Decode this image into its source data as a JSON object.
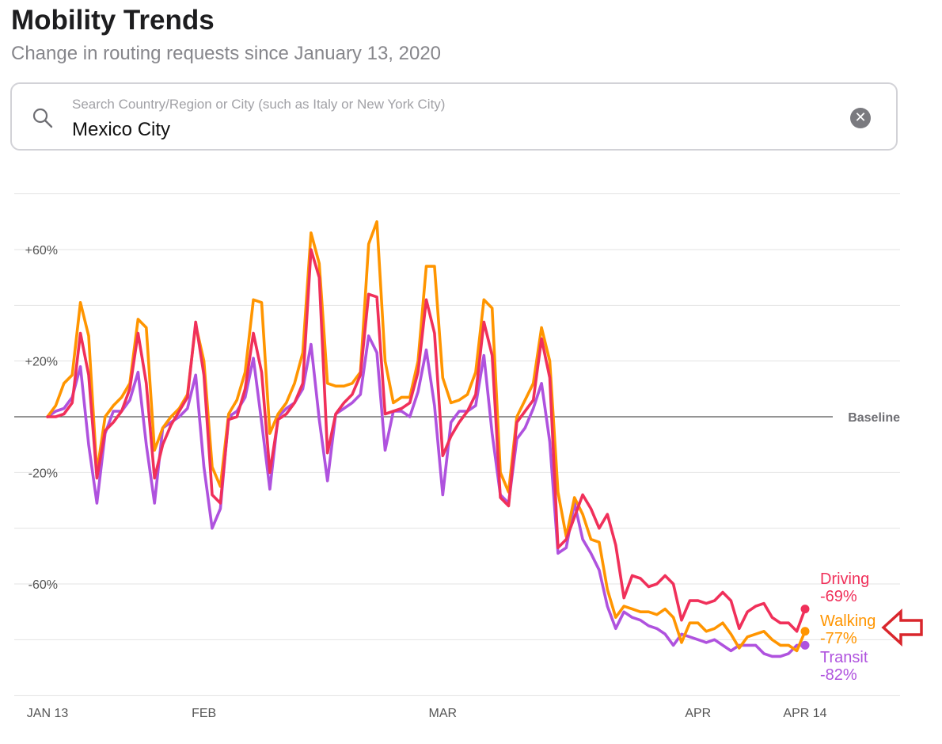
{
  "header": {
    "title": "Mobility Trends",
    "subtitle": "Change in routing requests since January 13, 2020"
  },
  "search": {
    "placeholder": "Search Country/Region or City (such as Italy or New York City)",
    "value": "Mexico City",
    "clear_icon": "close-circle-icon",
    "search_icon": "magnifier-icon"
  },
  "chart_data": {
    "type": "line",
    "x": [
      "2020-01-13",
      "2020-01-14",
      "2020-01-15",
      "2020-01-16",
      "2020-01-17",
      "2020-01-18",
      "2020-01-19",
      "2020-01-20",
      "2020-01-21",
      "2020-01-22",
      "2020-01-23",
      "2020-01-24",
      "2020-01-25",
      "2020-01-26",
      "2020-01-27",
      "2020-01-28",
      "2020-01-29",
      "2020-01-30",
      "2020-01-31",
      "2020-02-01",
      "2020-02-02",
      "2020-02-03",
      "2020-02-04",
      "2020-02-05",
      "2020-02-06",
      "2020-02-07",
      "2020-02-08",
      "2020-02-09",
      "2020-02-10",
      "2020-02-11",
      "2020-02-12",
      "2020-02-13",
      "2020-02-14",
      "2020-02-15",
      "2020-02-16",
      "2020-02-17",
      "2020-02-18",
      "2020-02-19",
      "2020-02-20",
      "2020-02-21",
      "2020-02-22",
      "2020-02-23",
      "2020-02-24",
      "2020-02-25",
      "2020-02-26",
      "2020-02-27",
      "2020-02-28",
      "2020-02-29",
      "2020-03-01",
      "2020-03-02",
      "2020-03-03",
      "2020-03-04",
      "2020-03-05",
      "2020-03-06",
      "2020-03-07",
      "2020-03-08",
      "2020-03-09",
      "2020-03-10",
      "2020-03-11",
      "2020-03-12",
      "2020-03-13",
      "2020-03-14",
      "2020-03-15",
      "2020-03-16",
      "2020-03-17",
      "2020-03-18",
      "2020-03-19",
      "2020-03-20",
      "2020-03-21",
      "2020-03-22",
      "2020-03-23",
      "2020-03-24",
      "2020-03-25",
      "2020-03-26",
      "2020-03-27",
      "2020-03-28",
      "2020-03-29",
      "2020-03-30",
      "2020-03-31",
      "2020-04-01",
      "2020-04-02",
      "2020-04-03",
      "2020-04-04",
      "2020-04-05",
      "2020-04-06",
      "2020-04-07",
      "2020-04-08",
      "2020-04-09",
      "2020-04-10",
      "2020-04-11",
      "2020-04-12",
      "2020-04-13",
      "2020-04-14"
    ],
    "series": [
      {
        "name": "Driving",
        "color": "#f0305a",
        "values": [
          0,
          0,
          1,
          5,
          30,
          15,
          -22,
          -5,
          -2,
          2,
          10,
          30,
          12,
          -22,
          -10,
          -3,
          2,
          7,
          34,
          15,
          -28,
          -31,
          -1,
          0,
          10,
          30,
          16,
          -20,
          -1,
          1,
          5,
          12,
          60,
          50,
          -13,
          1,
          5,
          8,
          15,
          44,
          43,
          1,
          2,
          3,
          5,
          16,
          42,
          30,
          -14,
          -7,
          -2,
          2,
          8,
          34,
          22,
          -29,
          -32,
          -2,
          2,
          6,
          28,
          14,
          -47,
          -44,
          -36,
          -28,
          -33,
          -40,
          -35,
          -46,
          -65,
          -57,
          -58,
          -61,
          -60,
          -57,
          -60,
          -73,
          -66,
          -66,
          -67,
          -66,
          -63,
          -66,
          -76,
          -70,
          -68,
          -67,
          -72,
          -74,
          -74,
          -77,
          -69
        ]
      },
      {
        "name": "Walking",
        "color": "#ff9500",
        "values": [
          0,
          4,
          12,
          15,
          41,
          29,
          -20,
          0,
          4,
          7,
          12,
          35,
          32,
          -12,
          -4,
          0,
          3,
          8,
          33,
          20,
          -18,
          -25,
          1,
          6,
          16,
          42,
          41,
          -6,
          1,
          5,
          12,
          23,
          66,
          55,
          12,
          11,
          11,
          12,
          16,
          62,
          70,
          20,
          5,
          7,
          7,
          20,
          54,
          54,
          14,
          5,
          6,
          8,
          16,
          42,
          39,
          -20,
          -27,
          0,
          6,
          12,
          32,
          20,
          -27,
          -43,
          -29,
          -35,
          -44,
          -45,
          -62,
          -72,
          -68,
          -69,
          -70,
          -70,
          -71,
          -69,
          -72,
          -81,
          -74,
          -74,
          -77,
          -76,
          -74,
          -78,
          -83,
          -79,
          -78,
          -77,
          -80,
          -82,
          -82,
          -84,
          -77
        ]
      },
      {
        "name": "Transit",
        "color": "#af52de",
        "values": [
          0,
          2,
          3,
          7,
          18,
          -10,
          -31,
          -6,
          2,
          2,
          6,
          16,
          -10,
          -31,
          -4,
          -2,
          0,
          3,
          15,
          -18,
          -40,
          -33,
          0,
          2,
          7,
          21,
          -2,
          -26,
          0,
          3,
          5,
          10,
          26,
          -1,
          -23,
          1,
          3,
          5,
          8,
          29,
          23,
          -12,
          2,
          2,
          0,
          9,
          24,
          4,
          -28,
          -2,
          2,
          2,
          4,
          22,
          -6,
          -28,
          -31,
          -8,
          -4,
          3,
          12,
          -9,
          -49,
          -47,
          -31,
          -44,
          -49,
          -55,
          -68,
          -76,
          -70,
          -72,
          -73,
          -75,
          -76,
          -78,
          -82,
          -78,
          -79,
          -80,
          -81,
          -80,
          -82,
          -84,
          -82,
          -82,
          -82,
          -85,
          -86,
          -86,
          -85,
          -82,
          -82
        ]
      }
    ],
    "x_ticks": [
      {
        "label": "JAN 13",
        "x": "2020-01-13"
      },
      {
        "label": "FEB",
        "x": "2020-02-01"
      },
      {
        "label": "MAR",
        "x": "2020-03-01"
      },
      {
        "label": "APR",
        "x": "2020-04-01"
      },
      {
        "label": "APR 14",
        "x": "2020-04-14"
      }
    ],
    "y_ticks": [
      {
        "label": "+60%",
        "value": 60
      },
      {
        "label": "+20%",
        "value": 20
      },
      {
        "label": "-20%",
        "value": -20
      },
      {
        "label": "-60%",
        "value": -60
      }
    ],
    "gridlines": [
      80,
      60,
      40,
      20,
      -20,
      -40,
      -60,
      -80,
      -100
    ],
    "baseline": {
      "label": "Baseline",
      "value": 0
    },
    "ylim": [
      -100,
      80
    ],
    "end_labels": [
      {
        "name": "Driving",
        "value_label": "-69%"
      },
      {
        "name": "Walking",
        "value_label": "-77%"
      },
      {
        "name": "Transit",
        "value_label": "-82%"
      }
    ],
    "annotation": {
      "type": "arrow",
      "points_to": "Walking",
      "color": "#d9262c"
    }
  }
}
